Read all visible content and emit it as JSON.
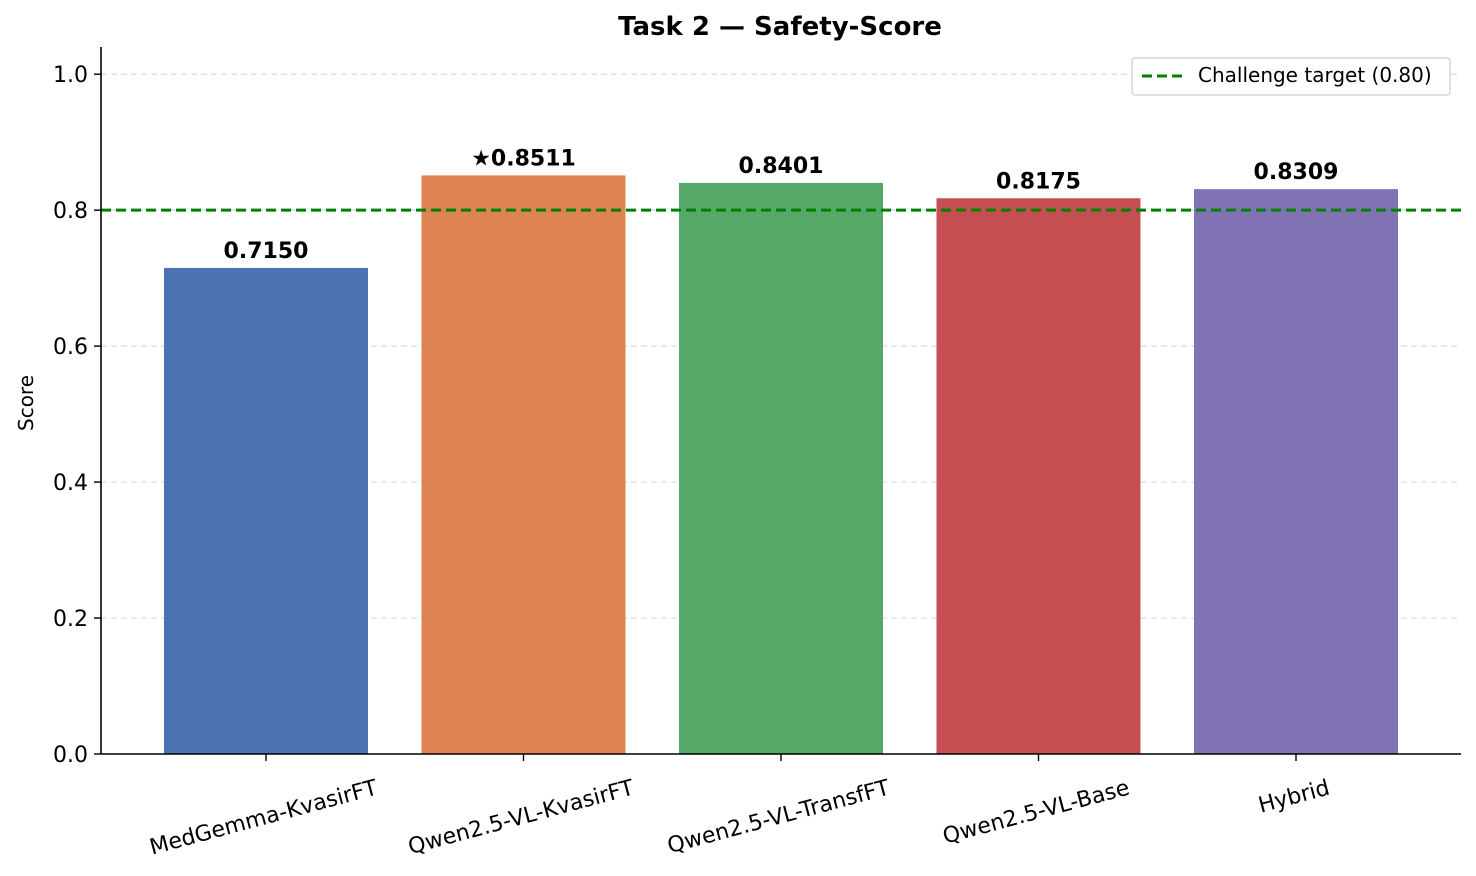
{
  "chart_data": {
    "type": "bar",
    "title": "Task 2 — Safety-Score",
    "ylabel": "Score",
    "xlabel": "",
    "ylim": [
      0,
      1.04
    ],
    "yticks": [
      0.0,
      0.2,
      0.4,
      0.6,
      0.8,
      1.0
    ],
    "ytick_labels": [
      "0.0",
      "0.2",
      "0.4",
      "0.6",
      "0.8",
      "1.0"
    ],
    "grid": "horizontal-dashed",
    "categories": [
      "MedGemma-KvasirFT",
      "Qwen2.5-VL-KvasirFT",
      "Qwen2.5-VL-TransfFT",
      "Qwen2.5-VL-Base",
      "Hybrid"
    ],
    "values": [
      0.715,
      0.8511,
      0.8401,
      0.8175,
      0.8309
    ],
    "value_labels": [
      "0.7150",
      "★0.8511",
      "0.8401",
      "0.8175",
      "0.8309"
    ],
    "colors": [
      "#4c72b0",
      "#dd8452",
      "#55a868",
      "#c44e52",
      "#8172b3"
    ],
    "reference_line": {
      "value": 0.8,
      "label": "Challenge target (0.80)",
      "color": "#008000",
      "style": "dashed"
    },
    "legend": {
      "placement": "top-right"
    }
  }
}
